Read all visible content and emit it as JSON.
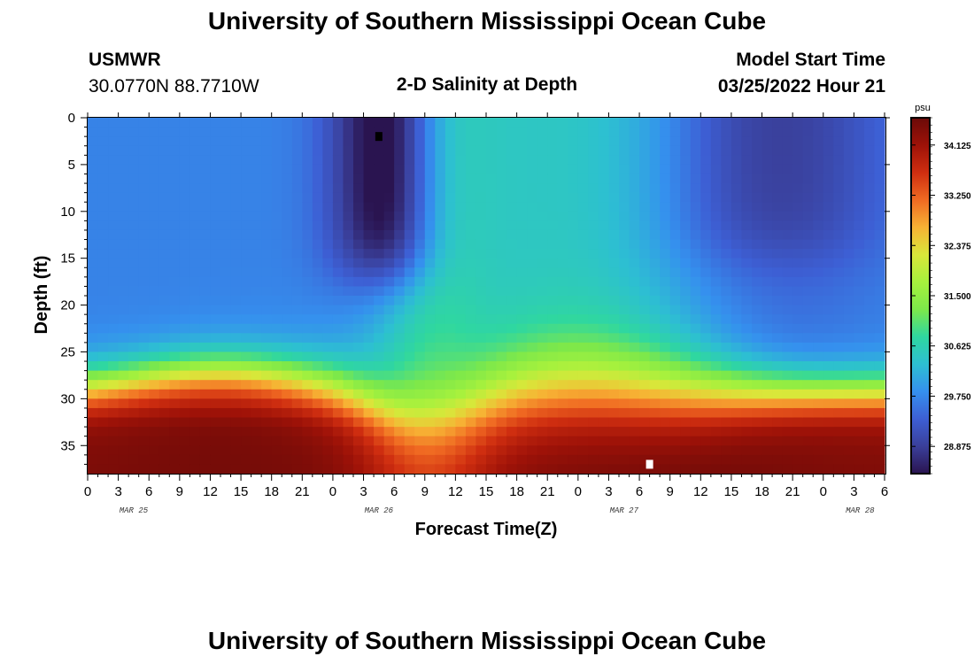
{
  "header": {
    "title": "University of Southern Mississippi Ocean Cube",
    "station": "USMWR",
    "coords": "30.0770N  88.7710W",
    "plot_title": "2-D Salinity at Depth",
    "model_label": "Model Start Time",
    "model_time": "03/25/2022 Hour 21"
  },
  "footer": {
    "title": "University of Southern Mississippi Ocean Cube"
  },
  "colors": {
    "scale": [
      "#2a1450",
      "#3a3f9a",
      "#3d5fd4",
      "#3590ee",
      "#2dbfd2",
      "#2fd7a0",
      "#7de84a",
      "#a6f13d",
      "#d9e73a",
      "#f7b234",
      "#f06a22",
      "#cf2e10",
      "#9e1208",
      "#6b0a08"
    ]
  },
  "chart_data": {
    "type": "heatmap",
    "title": "2-D Salinity at Depth",
    "xlabel": "Forecast Time(Z)",
    "ylabel": "Depth (ft)",
    "xticks": [
      "0",
      "3",
      "6",
      "9",
      "12",
      "15",
      "18",
      "21",
      "0",
      "3",
      "6",
      "9",
      "12",
      "15",
      "18",
      "21",
      "0",
      "3",
      "6",
      "9",
      "12",
      "15",
      "18",
      "21",
      "0",
      "3",
      "6"
    ],
    "yticks": [
      "0",
      "5",
      "10",
      "15",
      "20",
      "25",
      "30",
      "35"
    ],
    "date_labels": [
      {
        "label": "MAR 25",
        "tick_index": 1.5
      },
      {
        "label": "MAR 26",
        "tick_index": 9.5
      },
      {
        "label": "MAR 27",
        "tick_index": 17.5
      },
      {
        "label": "MAR 28",
        "tick_index": 25.2
      }
    ],
    "xlim_hours": [
      0,
      78
    ],
    "ylim_ft": [
      0,
      38
    ],
    "colorbar": {
      "unit": "psu",
      "labels": [
        "34.125",
        "33.250",
        "32.375",
        "31.500",
        "30.625",
        "29.750",
        "28.875"
      ],
      "range": [
        28.4,
        34.6
      ]
    },
    "field_summary": {
      "surface_min_1": {
        "hour": 28,
        "depth_ft": 8,
        "psu": 28.4
      },
      "surface_min_2": {
        "hour": 68,
        "depth_ft": 7,
        "psu": 29.0
      },
      "bottom_max_psu": 34.4,
      "surface_baseline_psu": 29.7,
      "mid_surface_psu": 30.85
    },
    "markers": [
      {
        "hour": 28.5,
        "depth_ft": 2.0,
        "color": "#000000"
      },
      {
        "hour": 55.0,
        "depth_ft": 37.0,
        "color": "#ffffff"
      }
    ]
  }
}
